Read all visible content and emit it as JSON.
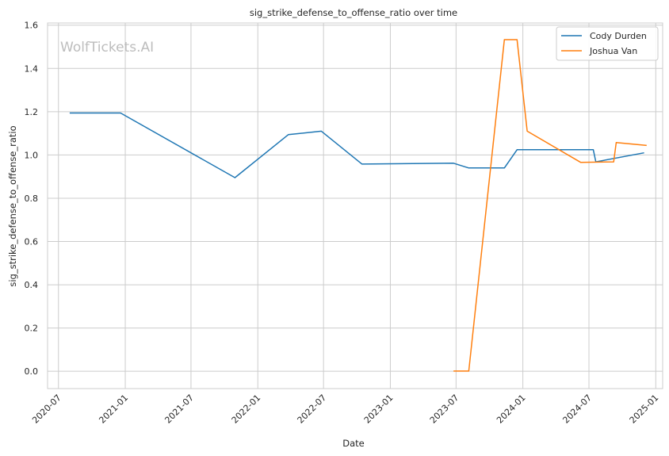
{
  "chart_data": {
    "type": "line",
    "title": "sig_strike_defense_to_offense_ratio over time",
    "xlabel": "Date",
    "ylabel": "sig_strike_defense_to_offense_ratio",
    "watermark": "WolfTickets.AI",
    "x_ticks": [
      "2020-07-01",
      "2021-01-01",
      "2021-07-01",
      "2022-01-01",
      "2022-07-01",
      "2023-01-01",
      "2023-07-01",
      "2024-01-01",
      "2024-07-01",
      "2025-01-01"
    ],
    "x_tick_labels": [
      "2020-07",
      "2021-01",
      "2021-07",
      "2022-01",
      "2022-07",
      "2023-01",
      "2023-07",
      "2024-01",
      "2024-07",
      "2025-01"
    ],
    "xlim": [
      "2020-06-01",
      "2025-01-20"
    ],
    "y_ticks": [
      0.0,
      0.2,
      0.4,
      0.6,
      0.8,
      1.0,
      1.2,
      1.4,
      1.6
    ],
    "y_tick_labels": [
      "0.0",
      "0.2",
      "0.4",
      "0.6",
      "0.8",
      "1.0",
      "1.2",
      "1.4",
      "1.6"
    ],
    "ylim": [
      -0.08,
      1.61
    ],
    "grid": true,
    "legend_position": "top-right",
    "series": [
      {
        "name": "Cody Durden",
        "color": "#1f77b4",
        "x": [
          "2020-08-01",
          "2020-12-19",
          "2021-10-30",
          "2022-03-26",
          "2022-06-25",
          "2022-10-15",
          "2023-06-24",
          "2023-08-05",
          "2023-11-11",
          "2023-12-16",
          "2024-07-13",
          "2024-07-20",
          "2024-11-30"
        ],
        "y": [
          1.194,
          1.194,
          0.895,
          1.094,
          1.11,
          0.958,
          0.962,
          0.94,
          0.94,
          1.024,
          1.024,
          0.968,
          1.01
        ]
      },
      {
        "name": "Joshua Van",
        "color": "#ff7f0e",
        "x": [
          "2023-06-24",
          "2023-08-05",
          "2023-11-11",
          "2023-12-16",
          "2024-01-13",
          "2024-06-08",
          "2024-09-07",
          "2024-09-14",
          "2024-12-07"
        ],
        "y": [
          0.001,
          0.001,
          1.533,
          1.533,
          1.11,
          0.966,
          0.968,
          1.057,
          1.044
        ]
      }
    ]
  }
}
